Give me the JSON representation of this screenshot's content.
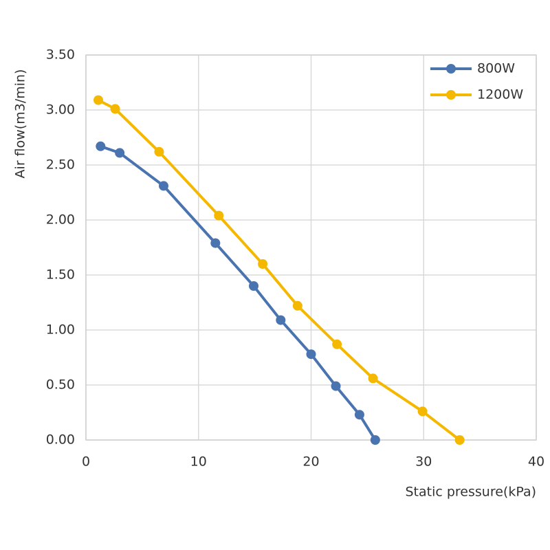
{
  "chart_data": {
    "type": "line",
    "x_label": "Static pressure(kPa)",
    "y_label": "Air flow(m3/min)",
    "xlim": [
      0,
      40
    ],
    "xticks": [
      0,
      10,
      20,
      30,
      40
    ],
    "ylim": [
      0,
      3.5
    ],
    "yticks": [
      {
        "value": 0,
        "label": "0.00"
      },
      {
        "value": 0.5,
        "label": "0.50"
      },
      {
        "value": 1,
        "label": "1.00"
      },
      {
        "value": 1.5,
        "label": "1.50"
      },
      {
        "value": 2,
        "label": "2.00"
      },
      {
        "value": 2.5,
        "label": "2.50"
      },
      {
        "value": 3,
        "label": "3.00"
      },
      {
        "value": 3.5,
        "label": "3.50"
      }
    ],
    "grid": true,
    "legend": "upper right",
    "series": [
      {
        "name": "800W",
        "color": "#4a74b0",
        "x": [
          1.3,
          3.0,
          6.9,
          11.5,
          14.9,
          17.3,
          20.0,
          22.2,
          24.3,
          25.7
        ],
        "values": [
          2.67,
          2.61,
          2.31,
          1.79,
          1.4,
          1.09,
          0.78,
          0.49,
          0.23,
          0
        ]
      },
      {
        "name": "1200W",
        "color": "#f5b800",
        "x": [
          1.1,
          2.6,
          6.5,
          11.8,
          15.7,
          18.8,
          22.3,
          25.5,
          29.9,
          33.2
        ],
        "values": [
          3.09,
          3.01,
          2.62,
          2.04,
          1.6,
          1.22,
          0.87,
          0.56,
          0.26,
          0
        ]
      }
    ]
  }
}
